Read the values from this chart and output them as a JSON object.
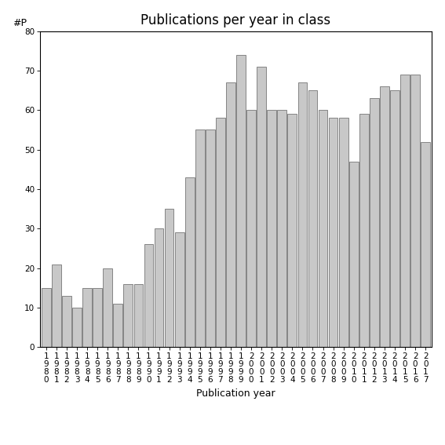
{
  "title": "Publications per year in class",
  "xlabel": "Publication year",
  "ylabel": "#P",
  "years": [
    "1980",
    "1981",
    "1982",
    "1983",
    "1984",
    "1985",
    "1986",
    "1987",
    "1988",
    "1989",
    "1990",
    "1991",
    "1992",
    "1993",
    "1994",
    "1995",
    "1996",
    "1997",
    "1998",
    "1999",
    "2000",
    "2001",
    "2002",
    "2003",
    "2004",
    "2005",
    "2006",
    "2007",
    "2008",
    "2009",
    "2010",
    "2011",
    "2012",
    "2013",
    "2014",
    "2015",
    "2016",
    "2017"
  ],
  "values": [
    15,
    21,
    13,
    10,
    15,
    15,
    20,
    11,
    16,
    16,
    26,
    30,
    35,
    29,
    43,
    55,
    55,
    58,
    67,
    74,
    60,
    71,
    60,
    60,
    59,
    67,
    65,
    60,
    58,
    58,
    47,
    59,
    63,
    66,
    65,
    69,
    69,
    52
  ],
  "bar_color": "#c8c8c8",
  "bar_edgecolor": "#606060",
  "ylim": [
    0,
    80
  ],
  "yticks": [
    0,
    10,
    20,
    30,
    40,
    50,
    60,
    70,
    80
  ],
  "background_color": "#ffffff",
  "title_fontsize": 12,
  "label_fontsize": 9,
  "tick_fontsize": 7.5
}
